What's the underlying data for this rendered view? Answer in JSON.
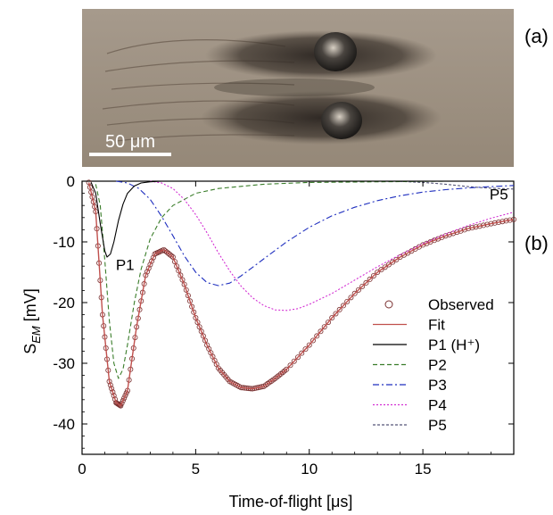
{
  "panel_a": {
    "label": "(a)",
    "scale_bar_label": "50 μm"
  },
  "panel_b": {
    "label": "(b)"
  },
  "chart_data": {
    "type": "line",
    "xlabel": "Time-of-flight [μs]",
    "ylabel": "S_EM [mV]",
    "xlim": [
      0,
      19
    ],
    "ylim": [
      -45,
      0
    ],
    "x_ticks": [
      0,
      5,
      10,
      15
    ],
    "y_ticks": [
      0,
      -10,
      -20,
      -30,
      -40
    ],
    "grid": false,
    "legend_position": "right",
    "annotations": [
      {
        "text": "P1",
        "x": 1.25,
        "y": -12
      },
      {
        "text": "P5",
        "x": 17.7,
        "y": -0.4
      }
    ],
    "series": [
      {
        "name": "Observed",
        "style": "open-circle",
        "color": "#7a3030",
        "x": [
          0.3,
          0.6,
          0.9,
          1.2,
          1.5,
          1.7,
          2.0,
          2.4,
          2.8,
          3.2,
          3.6,
          4.0,
          4.5,
          5.0,
          5.5,
          6.0,
          6.5,
          7.0,
          7.5,
          8.0,
          8.5,
          9.0,
          10.0,
          11.0,
          12.0,
          13.0,
          14.0,
          15.0,
          16.0,
          17.0,
          18.0,
          19.0
        ],
        "y": [
          -0.2,
          -5,
          -22,
          -33,
          -36.5,
          -37,
          -34.5,
          -24,
          -15.5,
          -12,
          -11.3,
          -12.5,
          -17,
          -22.5,
          -27,
          -30.8,
          -33,
          -34,
          -34.2,
          -33.8,
          -32.5,
          -31,
          -27,
          -22.5,
          -18.5,
          -15,
          -12.5,
          -10.5,
          -9,
          -7.8,
          -7,
          -6.3
        ]
      },
      {
        "name": "Fit",
        "style": "solid",
        "color": "#c0504d",
        "x": [
          0.3,
          0.6,
          0.9,
          1.2,
          1.5,
          1.7,
          2.0,
          2.4,
          2.8,
          3.2,
          3.6,
          4.0,
          4.5,
          5.0,
          5.5,
          6.0,
          6.5,
          7.0,
          7.5,
          8.0,
          8.5,
          9.0,
          10.0,
          11.0,
          12.0,
          13.0,
          14.0,
          15.0,
          16.0,
          17.0,
          18.0,
          19.0
        ],
        "y": [
          -0.2,
          -5,
          -22,
          -33,
          -36.5,
          -37,
          -34.5,
          -24,
          -15.5,
          -12,
          -11.3,
          -12.5,
          -17,
          -22.5,
          -27,
          -30.8,
          -33,
          -34,
          -34.2,
          -33.8,
          -32.5,
          -31,
          -27,
          -22.5,
          -18.5,
          -15,
          -12.5,
          -10.5,
          -9,
          -7.8,
          -7,
          -6.3
        ]
      },
      {
        "name": "P1 (H⁺)",
        "style": "solid",
        "color": "#000000",
        "x": [
          0.4,
          0.6,
          0.8,
          1.0,
          1.1,
          1.25,
          1.4,
          1.6,
          1.8,
          2.0,
          2.3,
          2.6,
          3.0,
          3.5,
          4.0,
          19.0
        ],
        "y": [
          -0.2,
          -2,
          -7,
          -11.5,
          -12.5,
          -12,
          -10,
          -6.5,
          -3.8,
          -2,
          -0.8,
          -0.3,
          -0.1,
          0,
          0,
          0
        ]
      },
      {
        "name": "P2",
        "style": "dashed",
        "color": "#3a7d2a",
        "x": [
          0.6,
          0.8,
          1.0,
          1.2,
          1.4,
          1.6,
          1.8,
          2.0,
          2.3,
          2.6,
          3.0,
          3.5,
          4.0,
          5.0,
          6.0,
          8.0,
          10.0,
          13.0,
          16.0,
          19.0
        ],
        "y": [
          -0.5,
          -4,
          -13,
          -23,
          -30,
          -32.5,
          -31,
          -27,
          -20,
          -14.5,
          -9.5,
          -6,
          -4,
          -2,
          -1.2,
          -0.5,
          -0.2,
          -0.1,
          0,
          0
        ]
      },
      {
        "name": "P3",
        "style": "dashdot",
        "color": "#1f2fbf",
        "x": [
          1.5,
          2.0,
          2.5,
          3.0,
          3.5,
          4.0,
          4.5,
          5.0,
          5.5,
          6.0,
          6.5,
          7.0,
          7.5,
          8.0,
          9.0,
          10.0,
          11.0,
          12.0,
          13.0,
          14.0,
          15.0,
          16.0,
          17.0,
          18.0,
          19.0
        ],
        "y": [
          0,
          -0.3,
          -1.2,
          -3,
          -5.8,
          -9,
          -12.3,
          -15,
          -16.7,
          -17.2,
          -16.8,
          -15.6,
          -14.2,
          -12.8,
          -10,
          -7.6,
          -5.7,
          -4.3,
          -3.2,
          -2.4,
          -1.8,
          -1.4,
          -1.1,
          -0.9,
          -0.7
        ]
      },
      {
        "name": "P4",
        "style": "dotted",
        "color": "#d32fd3",
        "x": [
          3.0,
          3.5,
          4.0,
          4.5,
          5.0,
          5.5,
          6.0,
          6.5,
          7.0,
          7.5,
          8.0,
          8.5,
          9.0,
          9.5,
          10.0,
          11.0,
          12.0,
          13.0,
          14.0,
          15.0,
          16.0,
          17.0,
          18.0,
          19.0
        ],
        "y": [
          0,
          -0.3,
          -1.2,
          -3,
          -5.5,
          -8.5,
          -11.8,
          -14.8,
          -17.3,
          -19.2,
          -20.5,
          -21.2,
          -21.3,
          -21,
          -20.3,
          -18.5,
          -16.3,
          -14.1,
          -12.1,
          -10.3,
          -8.7,
          -7.3,
          -6.1,
          -5.1
        ]
      },
      {
        "name": "P5",
        "style": "dashed-fine",
        "color": "#555577",
        "x": [
          13.0,
          14.0,
          15.0,
          16.0,
          17.0,
          17.7,
          18.3,
          19.0
        ],
        "y": [
          0,
          -0.05,
          -0.2,
          -0.5,
          -0.9,
          -1.1,
          -1.2,
          -1.3
        ]
      }
    ]
  }
}
